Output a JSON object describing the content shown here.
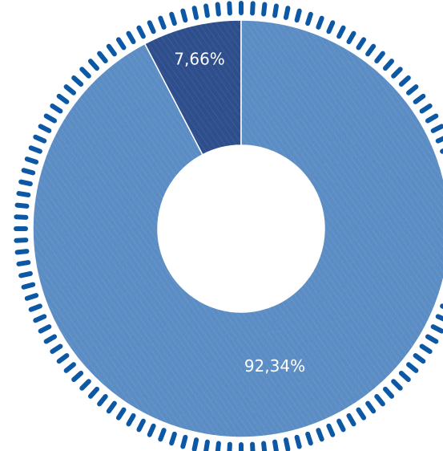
{
  "chart_data": {
    "type": "pie",
    "variant": "donut",
    "title": "",
    "slices": [
      {
        "value": 7.66,
        "label": "7,66%",
        "color": "#2d4e8c"
      },
      {
        "value": 92.34,
        "label": "92,34%",
        "color": "#5b8dc4"
      }
    ],
    "start_angle_deg": 0,
    "direction": "counterclockwise",
    "legend": "none",
    "decoration": {
      "outer_dash_ring_color": "#0d58a4",
      "texture": "denim"
    }
  }
}
